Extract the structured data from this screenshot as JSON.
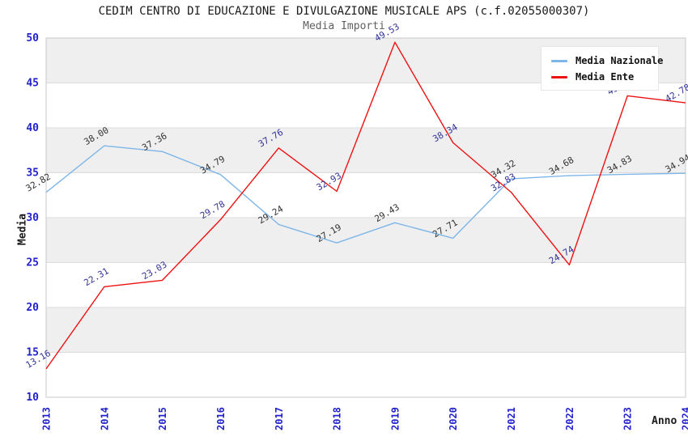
{
  "page": {
    "title": "CEDIM CENTRO DI EDUCAZIONE E DIVULGAZIONE MUSICALE APS (c.f.02055000307)",
    "subtitle": "Media Importi"
  },
  "chart_data": {
    "type": "line",
    "title": "CEDIM CENTRO DI EDUCAZIONE E DIVULGAZIONE MUSICALE APS (c.f.02055000307)",
    "subtitle": "Media Importi",
    "xlabel": "Anno",
    "ylabel": "Media",
    "x": [
      2013,
      2014,
      2015,
      2016,
      2017,
      2018,
      2019,
      2020,
      2021,
      2022,
      2023,
      2024
    ],
    "series": [
      {
        "name": "Media Nazionale",
        "color": "#7eb6e8",
        "label_color": "#333333",
        "values": [
          32.82,
          38.0,
          37.36,
          34.79,
          29.24,
          27.19,
          29.43,
          27.71,
          34.32,
          34.68,
          34.83,
          34.94
        ]
      },
      {
        "name": "Media Ente",
        "color": "#ee1111",
        "label_color": "#333399",
        "values": [
          13.16,
          22.31,
          23.03,
          29.78,
          37.76,
          32.93,
          49.53,
          38.34,
          32.83,
          24.74,
          43.57,
          42.78
        ]
      }
    ],
    "ylim": [
      10,
      50
    ],
    "ytick_step": 5,
    "yticks": [
      10,
      15,
      20,
      25,
      30,
      35,
      40,
      45,
      50
    ],
    "grid": true,
    "legend_position": "top-right",
    "colors": {
      "tick_label": "#2222cc",
      "band_fill": "#efefef",
      "grid_line": "#dcdcdc",
      "plot_border": "#c8c8c8",
      "background": "#ffffff"
    }
  }
}
